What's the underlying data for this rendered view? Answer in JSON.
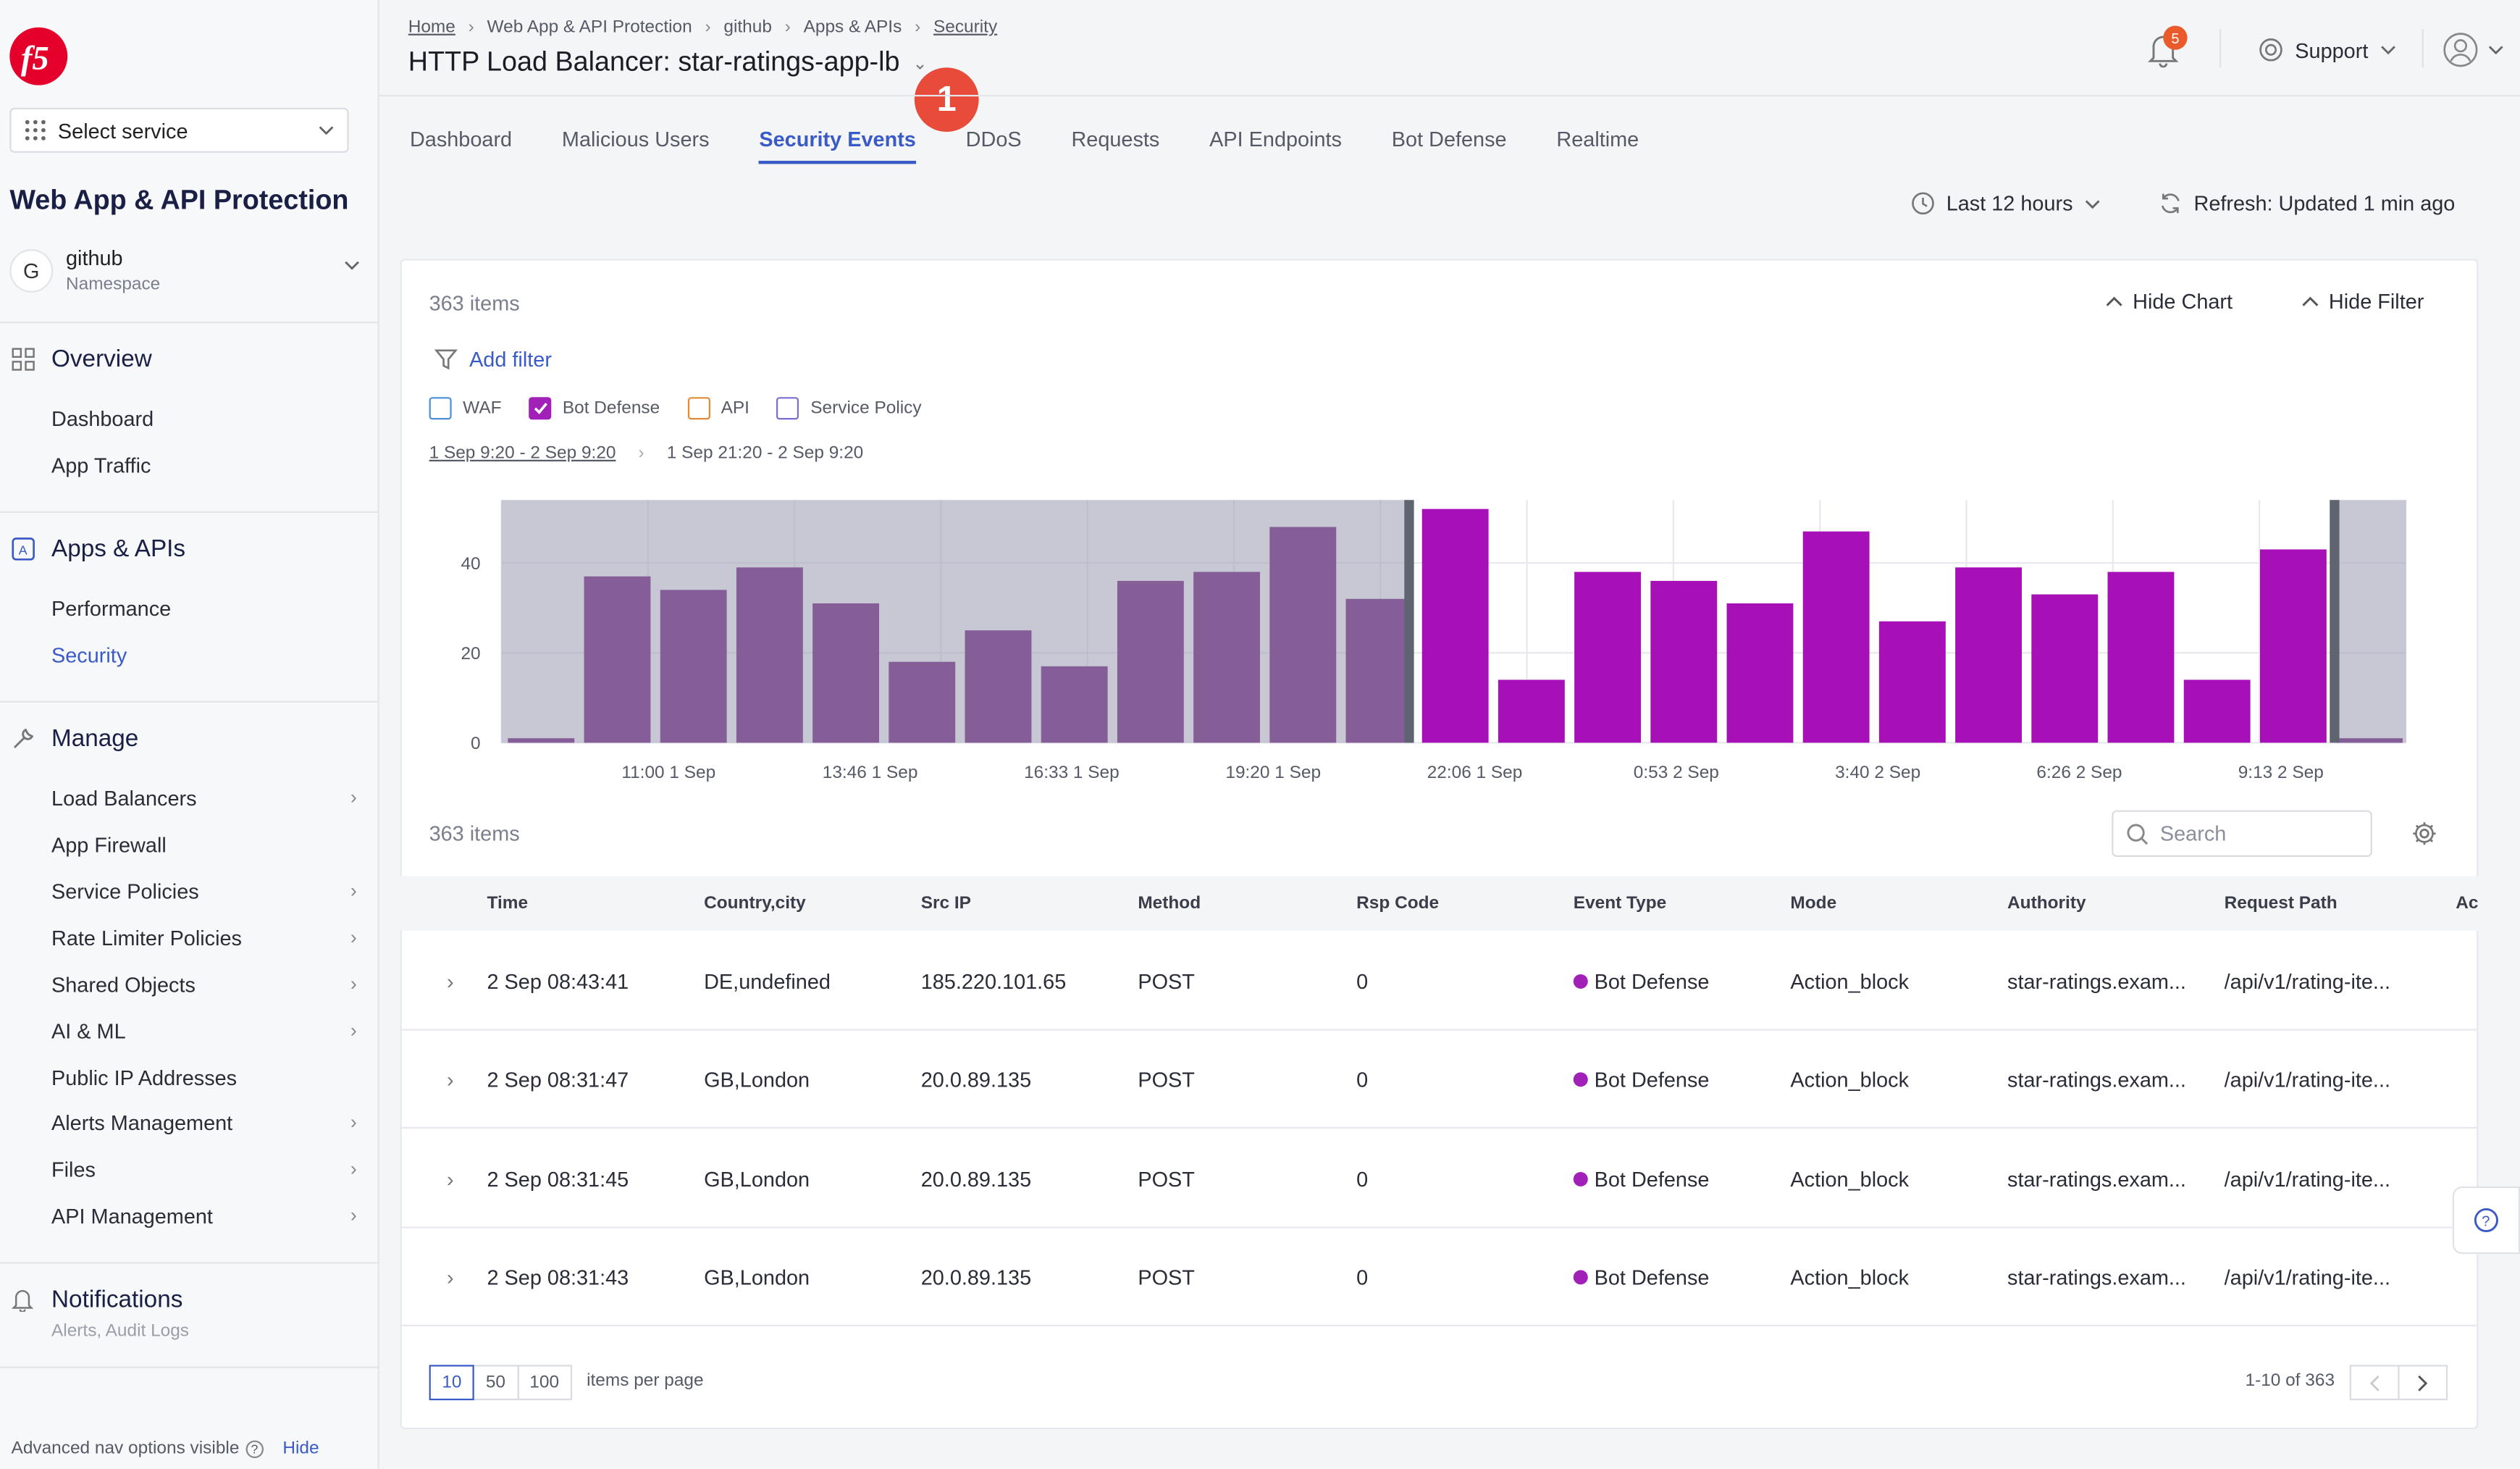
{
  "sidebar": {
    "service_select": "Select service",
    "app_title": "Web App & API Protection",
    "namespace": {
      "initial": "G",
      "name": "github",
      "label": "Namespace"
    },
    "overview": {
      "title": "Overview",
      "items": [
        "Dashboard",
        "App Traffic"
      ]
    },
    "apps": {
      "title": "Apps & APIs",
      "items": [
        "Performance",
        "Security"
      ]
    },
    "manage": {
      "title": "Manage",
      "items": [
        "Load Balancers",
        "App Firewall",
        "Service Policies",
        "Rate Limiter Policies",
        "Shared Objects",
        "AI & ML",
        "Public IP Addresses",
        "Alerts Management",
        "Files",
        "API Management"
      ]
    },
    "notifications": {
      "title": "Notifications",
      "sub": "Alerts, Audit Logs"
    },
    "advanced": {
      "text": "Advanced nav options visible",
      "hide": "Hide"
    }
  },
  "header": {
    "breadcrumb": [
      "Home",
      "Web App & API Protection",
      "github",
      "Apps & APIs",
      "Security"
    ],
    "title": "HTTP Load Balancer: star-ratings-app-lb",
    "step_badge": "1",
    "bell_count": "5",
    "support": "Support"
  },
  "tabs": [
    "Dashboard",
    "Malicious Users",
    "Security Events",
    "DDoS",
    "Requests",
    "API Endpoints",
    "Bot Defense",
    "Realtime"
  ],
  "time_range": "Last 12 hours",
  "refresh": "Refresh: Updated 1 min ago",
  "card": {
    "items_count": "363 items",
    "hide_chart": "Hide Chart",
    "hide_filter": "Hide Filter",
    "add_filter": "Add filter",
    "legend": [
      {
        "label": "WAF",
        "checked": false,
        "color": "#4a8fd8"
      },
      {
        "label": "Bot Defense",
        "checked": true,
        "color": "#a020b8"
      },
      {
        "label": "API",
        "checked": false,
        "color": "#e08a3a"
      },
      {
        "label": "Service Policy",
        "checked": false,
        "color": "#7a6fd0"
      }
    ],
    "range_full": "1 Sep 9:20 - 2 Sep 9:20",
    "range_selected": "1 Sep 21:20 - 2 Sep 9:20"
  },
  "chart_data": {
    "type": "bar",
    "series": [
      {
        "values": [
          1,
          37,
          34,
          39,
          31,
          18,
          25,
          17,
          36,
          38,
          48,
          32,
          52,
          14,
          38,
          36,
          31,
          47,
          27,
          39,
          33,
          38,
          14,
          43,
          1
        ]
      }
    ],
    "x_ticks": [
      "11:00 1 Sep",
      "13:46 1 Sep",
      "16:33 1 Sep",
      "19:20 1 Sep",
      "22:06 1 Sep",
      "0:53 2 Sep",
      "3:40 2 Sep",
      "6:26 2 Sep",
      "9:13 2 Sep"
    ],
    "y_ticks": [
      "0",
      "20",
      "40"
    ],
    "ylim": [
      0,
      54
    ],
    "selected_bar_range": [
      12,
      23
    ],
    "colors": {
      "selected": "#a70fb7",
      "unselected": "#6b1578",
      "shade": "#9a9bb0"
    },
    "grid": true
  },
  "table": {
    "items_count": "363 items",
    "search_placeholder": "Search",
    "columns": [
      "Time",
      "Country,city",
      "Src IP",
      "Method",
      "Rsp Code",
      "Event Type",
      "Mode",
      "Authority",
      "Request Path",
      "Ac"
    ],
    "rows": [
      [
        "2 Sep 08:43:41",
        "DE,undefined",
        "185.220.101.65",
        "POST",
        "0",
        "Bot Defense",
        "Action_block",
        "star-ratings.exam...",
        "/api/v1/rating-ite..."
      ],
      [
        "2 Sep 08:31:47",
        "GB,London",
        "20.0.89.135",
        "POST",
        "0",
        "Bot Defense",
        "Action_block",
        "star-ratings.exam...",
        "/api/v1/rating-ite..."
      ],
      [
        "2 Sep 08:31:45",
        "GB,London",
        "20.0.89.135",
        "POST",
        "0",
        "Bot Defense",
        "Action_block",
        "star-ratings.exam...",
        "/api/v1/rating-ite..."
      ],
      [
        "2 Sep 08:31:43",
        "GB,London",
        "20.0.89.135",
        "POST",
        "0",
        "Bot Defense",
        "Action_block",
        "star-ratings.exam...",
        "/api/v1/rating-ite..."
      ]
    ],
    "page_sizes": [
      "10",
      "50",
      "100"
    ],
    "per_page": "items per page",
    "range": "1-10 of 363"
  }
}
